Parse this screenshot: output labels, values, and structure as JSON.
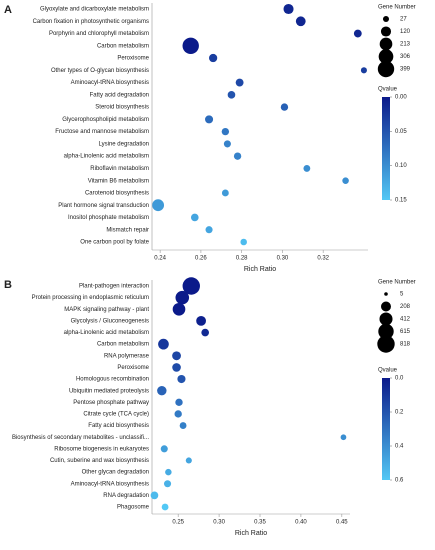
{
  "chart_data": [
    {
      "type": "scatter",
      "panel_label": "A",
      "x_label": "Rich Ratio",
      "categories": [
        "Glyoxylate and dicarboxylate metabolism",
        "Carbon fixation in photosynthetic organisms",
        "Porphyrin and chlorophyll metabolism",
        "Carbon metabolism",
        "Peroxisome",
        "Other types of O-glycan biosynthesis",
        "Aminoacyl-tRNA biosynthesis",
        "Fatty acid degradation",
        "Steroid biosynthesis",
        "Glycerophospholipid metabolism",
        "Fructose and mannose metabolism",
        "Lysine degradation",
        "alpha-Linolenic acid metabolism",
        "Riboflavin metabolism",
        "Vitamin B6 metabolism",
        "Carotenoid biosynthesis",
        "Plant hormone signal transduction",
        "Inositol phosphate metabolism",
        "Mismatch repair",
        "One carbon pool by folate"
      ],
      "rich_ratio": [
        0.303,
        0.309,
        0.337,
        0.255,
        0.266,
        0.34,
        0.279,
        0.275,
        0.301,
        0.264,
        0.272,
        0.273,
        0.278,
        0.312,
        0.331,
        0.272,
        0.239,
        0.257,
        0.264,
        0.281
      ],
      "gene_number": [
        120,
        110,
        60,
        399,
        70,
        27,
        60,
        55,
        50,
        65,
        50,
        45,
        50,
        40,
        35,
        40,
        180,
        55,
        45,
        35
      ],
      "qvalue": [
        0.01,
        0.01,
        0.01,
        0.0,
        0.03,
        0.03,
        0.04,
        0.05,
        0.06,
        0.07,
        0.08,
        0.09,
        0.09,
        0.1,
        0.1,
        0.11,
        0.11,
        0.12,
        0.12,
        0.14
      ],
      "xlim": [
        0.236,
        0.342
      ],
      "xticks": [
        0.24,
        0.26,
        0.28,
        {
          "value": 0.3,
          "label": "0.30"
        },
        0.32
      ],
      "size_legend": {
        "title": "Gene Number",
        "values": [
          27,
          120,
          213,
          306,
          399
        ]
      },
      "color_legend": {
        "title": "Qvalue",
        "lim": [
          0,
          0.15
        ],
        "colors": [
          "#0b1a8a",
          "#52c8f5"
        ],
        "ticks": [
          {
            "value": 0,
            "label": "0.00"
          },
          {
            "value": 0.05,
            "label": "0.05"
          },
          {
            "value": 0.1,
            "label": "0.10"
          },
          {
            "value": 0.15,
            "label": "0.15"
          }
        ]
      }
    },
    {
      "type": "scatter",
      "panel_label": "B",
      "x_label": "Rich Ratio",
      "categories": [
        "Plant-pathogen interaction",
        "Protein processing in endoplasmic reticulum",
        "MAPK signaling pathway - plant",
        "Glycolysis / Gluconeogenesis",
        "alpha-Linolenic acid metabolism",
        "Carbon metabolism",
        "RNA polymerase",
        "Peroxisome",
        "Homologous recombination",
        "Ubiquitin mediated proteolysis",
        "Pentose phosphate pathway",
        "Citrate cycle (TCA cycle)",
        "Fatty acid biosynthesis",
        "Biosynthesis of secondary metabolites - unclassifi...",
        "Ribosome biogenesis in eukaryotes",
        "Cutin, suberine and wax biosynthesis",
        "Other glycan degradation",
        "Aminoacyl-tRNA biosynthesis",
        "RNA degradation",
        "Phagosome"
      ],
      "rich_ratio": [
        0.266,
        0.255,
        0.251,
        0.278,
        0.283,
        0.232,
        0.248,
        0.248,
        0.254,
        0.23,
        0.251,
        0.25,
        0.256,
        0.452,
        0.233,
        0.263,
        0.238,
        0.237,
        0.221,
        0.234
      ],
      "gene_number": [
        818,
        450,
        380,
        200,
        100,
        250,
        150,
        140,
        120,
        180,
        90,
        90,
        70,
        40,
        80,
        50,
        60,
        80,
        100,
        70
      ],
      "qvalue": [
        0.0,
        0.0,
        0.0,
        0.02,
        0.05,
        0.1,
        0.15,
        0.17,
        0.2,
        0.25,
        0.3,
        0.33,
        0.35,
        0.4,
        0.45,
        0.48,
        0.5,
        0.52,
        0.55,
        0.6
      ],
      "xlim": [
        0.218,
        0.46
      ],
      "xticks": [
        0.25,
        {
          "value": 0.3,
          "label": "0.30"
        },
        0.35,
        {
          "value": 0.4,
          "label": "0.40"
        },
        0.45
      ],
      "size_legend": {
        "title": "Gene Number",
        "values": [
          5,
          208,
          412,
          615,
          818
        ]
      },
      "color_legend": {
        "title": "Qvalue",
        "lim": [
          0,
          0.6
        ],
        "colors": [
          "#0b1a8a",
          "#52c8f5"
        ],
        "ticks": [
          {
            "value": 0,
            "label": "0.0"
          },
          {
            "value": 0.2,
            "label": "0.2"
          },
          {
            "value": 0.4,
            "label": "0.4"
          },
          {
            "value": 0.6,
            "label": "0.6"
          }
        ]
      }
    }
  ]
}
